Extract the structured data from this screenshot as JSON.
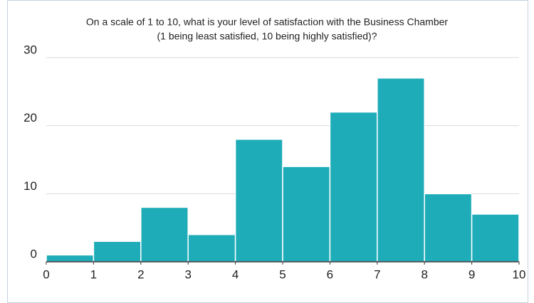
{
  "chart_data": {
    "type": "histogram",
    "title": [
      "On a scale of 1 to 10, what is your level of satisfaction with the Business Chamber",
      "(1 being least satisfied, 10 being highly satisfied)?"
    ],
    "bins": [
      0,
      1,
      2,
      3,
      4,
      5,
      6,
      7,
      8,
      9,
      10
    ],
    "values": [
      1,
      3,
      8,
      4,
      18,
      14,
      22,
      27,
      10,
      7
    ],
    "color": "#1eacb8",
    "xlim": [
      0,
      10
    ],
    "xticks": [
      0,
      1,
      2,
      3,
      4,
      5,
      6,
      7,
      8,
      9,
      10
    ],
    "ylim": [
      0,
      30
    ],
    "yticks": [
      0,
      10,
      20,
      30
    ],
    "grid": true
  }
}
